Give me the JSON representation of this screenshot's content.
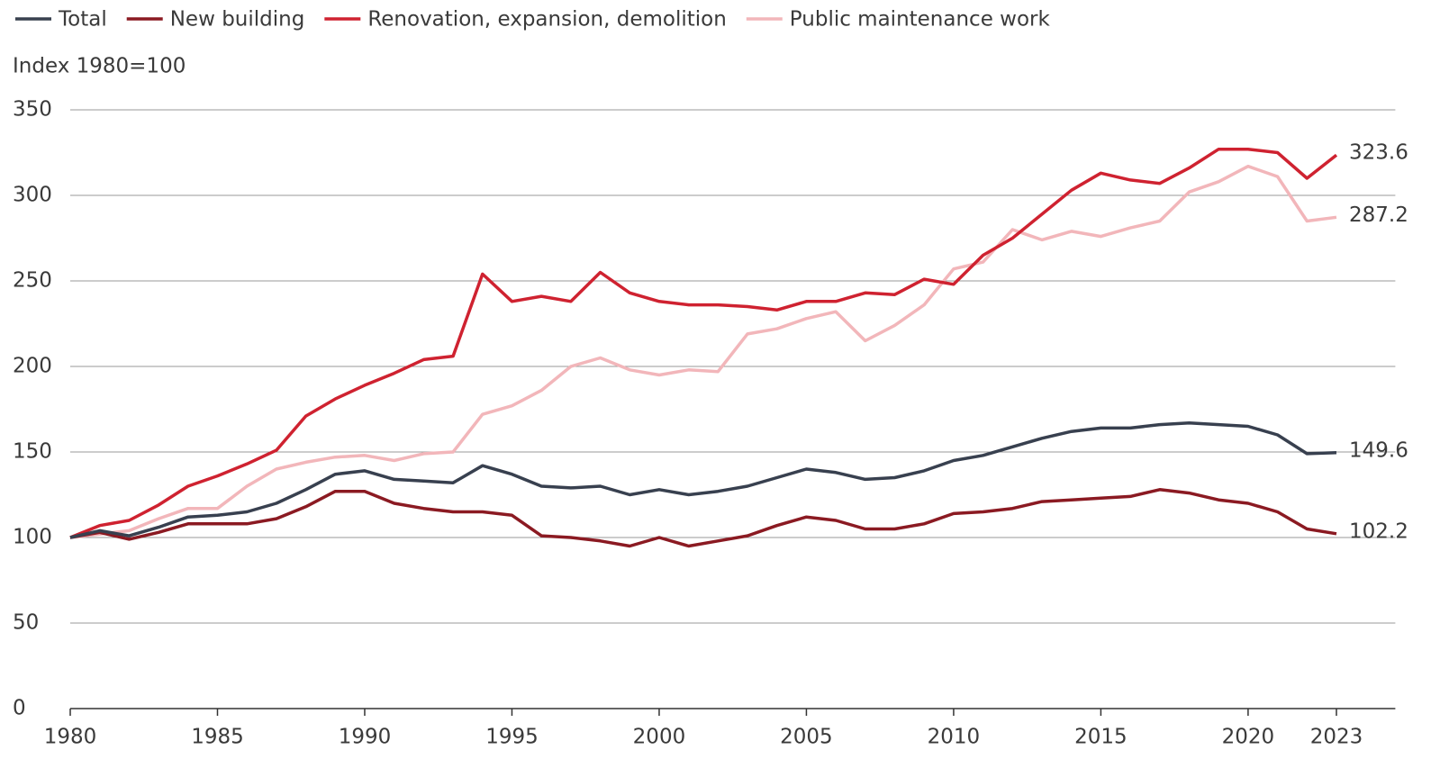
{
  "chart_data": {
    "type": "line",
    "y_label": "Index 1980=100",
    "x": [
      1980,
      1981,
      1982,
      1983,
      1984,
      1985,
      1986,
      1987,
      1988,
      1989,
      1990,
      1991,
      1992,
      1993,
      1994,
      1995,
      1996,
      1997,
      1998,
      1999,
      2000,
      2001,
      2002,
      2003,
      2004,
      2005,
      2006,
      2007,
      2008,
      2009,
      2010,
      2011,
      2012,
      2013,
      2014,
      2015,
      2016,
      2017,
      2018,
      2019,
      2020,
      2021,
      2022,
      2023
    ],
    "series": [
      {
        "name": "Total",
        "color": "#38404f",
        "values": [
          100,
          104,
          101,
          106,
          112,
          113,
          115,
          120,
          128,
          137,
          139,
          134,
          133,
          132,
          142,
          137,
          130,
          129,
          130,
          125,
          128,
          125,
          127,
          130,
          135,
          140,
          138,
          134,
          135,
          139,
          145,
          148,
          153,
          158,
          162,
          164,
          164,
          166,
          167,
          166,
          165,
          160,
          149,
          149.6
        ]
      },
      {
        "name": "New building",
        "color": "#8b1a22",
        "values": [
          100,
          103,
          99,
          103,
          108,
          108,
          108,
          111,
          118,
          127,
          127,
          120,
          117,
          115,
          115,
          113,
          101,
          100,
          98,
          95,
          100,
          95,
          98,
          101,
          107,
          112,
          110,
          105,
          105,
          108,
          114,
          115,
          117,
          121,
          122,
          123,
          124,
          128,
          126,
          122,
          120,
          115,
          105,
          102.2
        ]
      },
      {
        "name": "Renovation, expansion, demolition",
        "color": "#cf2230",
        "values": [
          100,
          107,
          110,
          119,
          130,
          136,
          143,
          151,
          171,
          181,
          189,
          196,
          204,
          206,
          254,
          238,
          241,
          238,
          255,
          243,
          238,
          236,
          236,
          235,
          233,
          238,
          238,
          243,
          242,
          251,
          248,
          265,
          275,
          289,
          303,
          313,
          309,
          307,
          316,
          327,
          327,
          325,
          310,
          323.6
        ]
      },
      {
        "name": "Public maintenance work",
        "color": "#f2b6ba",
        "values": [
          100,
          102,
          104,
          111,
          117,
          117,
          130,
          140,
          144,
          147,
          148,
          145,
          149,
          150,
          172,
          177,
          186,
          200,
          205,
          198,
          195,
          198,
          197,
          219,
          222,
          228,
          232,
          215,
          224,
          236,
          257,
          261,
          280,
          274,
          279,
          276,
          281,
          285,
          302,
          308,
          317,
          311,
          285,
          287.2
        ]
      }
    ],
    "xlim": [
      1980,
      2025
    ],
    "xticks": [
      1980,
      1985,
      1990,
      1995,
      2000,
      2005,
      2010,
      2015,
      2020,
      2023
    ],
    "ylim": [
      0,
      350
    ],
    "yticks": [
      0,
      50,
      100,
      150,
      200,
      250,
      300,
      350
    ],
    "grid": true,
    "legend": "top"
  }
}
